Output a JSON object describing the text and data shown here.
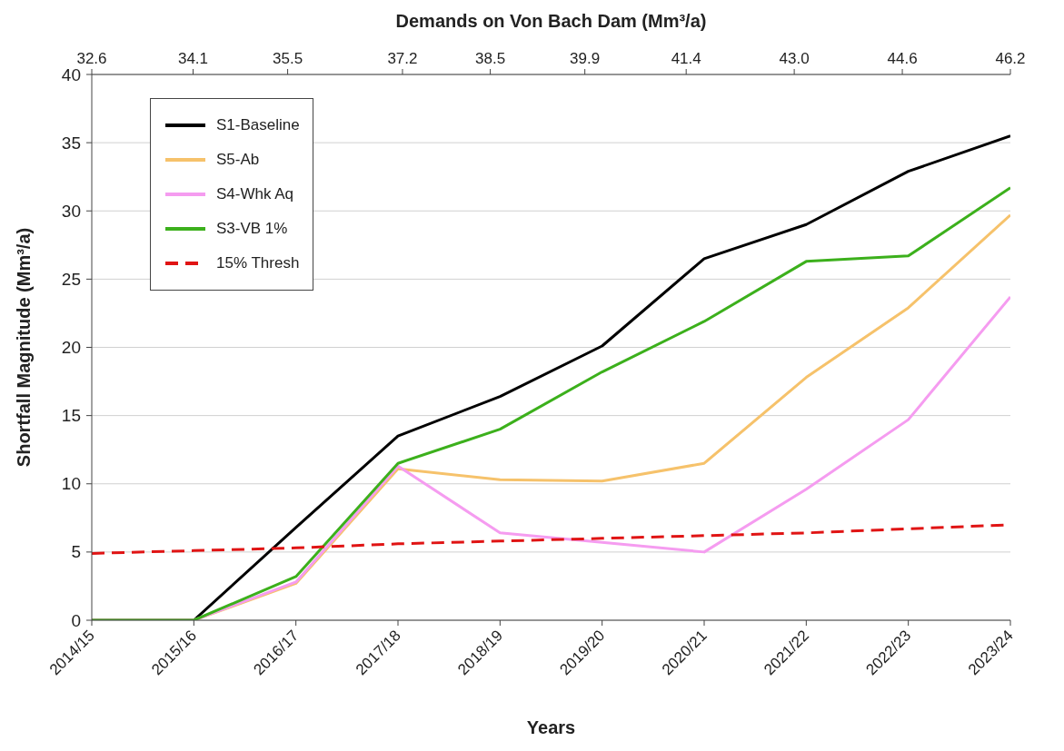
{
  "chart_data": {
    "type": "line",
    "x2label": "Demands on Von Bach Dam (Mm³/a)",
    "xlabel": "Years",
    "ylabel": "Shortfall Magnitude (Mm³/a)",
    "categories": [
      "2014/15",
      "2015/16",
      "2016/17",
      "2017/18",
      "2018/19",
      "2019/20",
      "2020/21",
      "2021/22",
      "2022/23",
      "2023/24"
    ],
    "x2lim": [
      32.6,
      46.2
    ],
    "x2ticks": [
      32.6,
      34.1,
      35.5,
      37.2,
      38.5,
      {
        "value": 39.9,
        "label": "39.9"
      },
      41.4,
      {
        "value": 43.0,
        "label": "43.0"
      },
      44.6,
      46.2
    ],
    "ylim": [
      0,
      40
    ],
    "yticks": [
      0,
      5,
      10,
      15,
      20,
      25,
      30,
      35,
      40
    ],
    "grid": "y",
    "legend": "top left",
    "marker": "none",
    "series": [
      {
        "name": "S1-Baseline",
        "color": "#000000",
        "values": [
          0,
          0,
          6.8,
          13.5,
          16.4,
          20.1,
          26.5,
          29.0,
          32.9,
          35.5
        ]
      },
      {
        "name": "S5-Ab",
        "color": "#f6c26b",
        "values": [
          0,
          0,
          2.7,
          11.1,
          10.3,
          10.2,
          11.5,
          17.8,
          22.9,
          29.7
        ]
      },
      {
        "name": "S4-Whk Aq",
        "color": "#f59cf0",
        "values": [
          0,
          0,
          2.8,
          11.3,
          6.4,
          5.7,
          5.0,
          9.6,
          14.7,
          23.7
        ]
      },
      {
        "name": "S3-VB 1%",
        "color": "#3cb01c",
        "values": [
          0,
          0,
          3.2,
          11.5,
          14.0,
          18.2,
          21.9,
          26.3,
          26.7,
          31.7
        ]
      },
      {
        "name": "15% Thresh",
        "color": "#e01414",
        "line_style": "dashed",
        "values": [
          4.9,
          5.1,
          5.3,
          5.6,
          5.8,
          6.0,
          6.2,
          6.4,
          6.7,
          7.0
        ]
      }
    ]
  }
}
